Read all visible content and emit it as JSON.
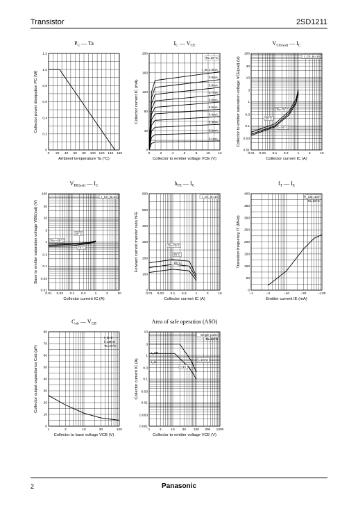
{
  "header": {
    "left": "Transistor",
    "right": "2SD1211"
  },
  "footer": {
    "page": "2",
    "brand": "Panasonic"
  },
  "chart_data": [
    {
      "id": "pc",
      "type": "line",
      "title": "P_C — Ta",
      "xlabel": "Ambient temperature Ta (°C)",
      "ylabel": "Collector power dissipation P_C (W)",
      "xlim": [
        0,
        160
      ],
      "ylim": [
        0,
        1.2
      ],
      "xticks": [
        "0",
        "20",
        "40",
        "60",
        "80",
        "100",
        "120",
        "140",
        "160"
      ],
      "yticks": [
        "0",
        "0.2",
        "0.4",
        "0.6",
        "0.8",
        "1.0",
        "1.2"
      ],
      "grid": true,
      "series": [
        {
          "x": [
            0,
            25,
            150
          ],
          "y": [
            1.0,
            1.0,
            0
          ]
        }
      ]
    },
    {
      "id": "icvce",
      "type": "line",
      "title": "I_C — V_CE",
      "xlabel": "Collector to emitter voltage V_CE (V)",
      "ylabel": "Collector current I_C (mA)",
      "xlim": [
        0,
        12
      ],
      "ylim": [
        0,
        200
      ],
      "xticks": [
        "0",
        "2",
        "4",
        "6",
        "8",
        "10",
        "12"
      ],
      "yticks": [
        "0",
        "40",
        "80",
        "120",
        "160",
        "200"
      ],
      "grid": true,
      "annotations": [
        "Ta=25°C",
        "I_B=1.0mA",
        "0.9mA",
        "0.8mA",
        "0.7mA",
        "0.6mA",
        "0.5mA",
        "0.4mA",
        "0.3mA",
        "0.2mA",
        "0.1mA"
      ],
      "series": [
        {
          "name": "1.0mA",
          "level": 150
        },
        {
          "name": "0.9mA",
          "level": 135
        },
        {
          "name": "0.8mA",
          "level": 120
        },
        {
          "name": "0.7mA",
          "level": 106
        },
        {
          "name": "0.6mA",
          "level": 92
        },
        {
          "name": "0.5mA",
          "level": 78
        },
        {
          "name": "0.4mA",
          "level": 64
        },
        {
          "name": "0.3mA",
          "level": 49
        },
        {
          "name": "0.2mA",
          "level": 33
        },
        {
          "name": "0.1mA",
          "level": 17
        }
      ]
    },
    {
      "id": "vcesat",
      "type": "line",
      "title": "V_CE(sat) — I_C",
      "xlabel": "Collector current I_C (A)",
      "ylabel": "Collector to emitter saturation voltage V_CE(sat) (V)",
      "xscale": "log",
      "yscale": "log",
      "xlim": [
        0.01,
        10
      ],
      "ylim": [
        0.01,
        100
      ],
      "xticks": [
        "0.01",
        "0.03",
        "0.1",
        "0.3",
        "1",
        "3",
        "10"
      ],
      "yticks": [
        "0.01",
        "0.03",
        "0.1",
        "0.3",
        "1",
        "3",
        "10",
        "30",
        "100"
      ],
      "grid": true,
      "annotations": [
        "I_C/I_B=10",
        "Ta=75°C",
        "25°C",
        "−25°C"
      ],
      "series": [
        {
          "name": "Ta=75°C",
          "x": [
            0.01,
            0.1,
            0.4,
            0.8,
            1.0
          ],
          "y": [
            0.055,
            0.12,
            0.4,
            1.3,
            3
          ]
        },
        {
          "name": "25°C",
          "x": [
            0.01,
            0.1,
            0.4,
            0.8,
            1.0
          ],
          "y": [
            0.045,
            0.1,
            0.33,
            1.0,
            2.6
          ]
        },
        {
          "name": "−25°C",
          "x": [
            0.01,
            0.1,
            0.4,
            0.8,
            1.0
          ],
          "y": [
            0.04,
            0.09,
            0.28,
            0.85,
            2.2
          ]
        }
      ]
    },
    {
      "id": "vbesat",
      "type": "line",
      "title": "V_BE(sat) — I_C",
      "xlabel": "Collector current I_C (A)",
      "ylabel": "Base to emitter saturation voltage V_BE(sat) (V)",
      "xscale": "log",
      "yscale": "log",
      "xlim": [
        0.01,
        10
      ],
      "ylim": [
        0.01,
        100
      ],
      "xticks": [
        "0.01",
        "0.03",
        "0.1",
        "0.3",
        "1",
        "3",
        "10"
      ],
      "yticks": [
        "0.01",
        "0.03",
        "0.1",
        "0.3",
        "1",
        "3",
        "10",
        "30",
        "100"
      ],
      "grid": true,
      "annotations": [
        "I_C/I_B=10",
        "25°C",
        "Ta=−25°C",
        "75°C"
      ],
      "series": [
        {
          "name": "Ta=−25°C",
          "x": [
            0.01,
            0.1,
            0.5,
            1.0
          ],
          "y": [
            0.82,
            0.86,
            0.95,
            1.1
          ]
        },
        {
          "name": "25°C",
          "x": [
            0.01,
            0.1,
            0.5,
            1.0
          ],
          "y": [
            0.72,
            0.78,
            0.9,
            1.05
          ]
        },
        {
          "name": "75°C",
          "x": [
            0.01,
            0.1,
            0.5,
            1.0
          ],
          "y": [
            0.62,
            0.7,
            0.85,
            1.0
          ]
        }
      ]
    },
    {
      "id": "hfe",
      "type": "line",
      "title": "h_FE — I_C",
      "xlabel": "Collector current I_C (A)",
      "ylabel": "Forward current transfer ratio h_FE",
      "xscale": "log",
      "xlim": [
        0.01,
        10
      ],
      "ylim": [
        0,
        600
      ],
      "xticks": [
        "0.01",
        "0.03",
        "0.1",
        "0.3",
        "1",
        "3",
        "10"
      ],
      "yticks": [
        "0",
        "100",
        "200",
        "300",
        "400",
        "500",
        "600"
      ],
      "grid": true,
      "annotations": [
        "I_C/I_B=10",
        "Ta=75°C",
        "25°C",
        "−25°C"
      ],
      "series": [
        {
          "name": "Ta=75°C",
          "x": [
            0.01,
            0.1,
            0.5,
            1.0
          ],
          "y": [
            170,
            190,
            180,
            90
          ]
        },
        {
          "name": "25°C",
          "x": [
            0.01,
            0.1,
            0.5,
            1.0
          ],
          "y": [
            140,
            160,
            150,
            75
          ]
        },
        {
          "name": "−25°C",
          "x": [
            0.01,
            0.1,
            0.5,
            1.0
          ],
          "y": [
            110,
            130,
            120,
            60
          ]
        }
      ]
    },
    {
      "id": "ft",
      "type": "line",
      "title": "f_T — I_E",
      "xlabel": "Emitter current I_E (mA)",
      "ylabel": "Transition frequency f_T (MHz)",
      "xscale": "log",
      "xlim": [
        -1,
        -100
      ],
      "ylim": [
        0,
        400
      ],
      "xticks": [
        "−1",
        "−3",
        "−10",
        "−30",
        "−100"
      ],
      "yticks": [
        "0",
        "50",
        "100",
        "150",
        "200",
        "250",
        "300",
        "350",
        "400"
      ],
      "grid": true,
      "annotations": [
        "V_CB=10V",
        "Ta=25°C"
      ],
      "series": [
        {
          "x": [
            -3,
            -10,
            -30,
            -60,
            -100
          ],
          "y": [
            20,
            80,
            170,
            215,
            230
          ]
        }
      ]
    },
    {
      "id": "cob",
      "type": "line",
      "title": "C_ob — V_CB",
      "xlabel": "Collector to base voltage V_CB (V)",
      "ylabel": "Collector output capacitance C_ob (pF)",
      "xscale": "log",
      "xlim": [
        1,
        100
      ],
      "ylim": [
        0,
        80
      ],
      "xticks": [
        "1",
        "3",
        "10",
        "30",
        "100"
      ],
      "yticks": [
        "0",
        "10",
        "20",
        "30",
        "40",
        "50",
        "60",
        "70",
        "80"
      ],
      "grid": true,
      "annotations": [
        "I_E=0",
        "f=1MHz",
        "Ta=25°C"
      ],
      "series": [
        {
          "x": [
            1,
            3,
            10,
            30,
            100
          ],
          "y": [
            26,
            18,
            11,
            7,
            5
          ]
        }
      ]
    },
    {
      "id": "aso",
      "type": "line",
      "title": "Area of safe operation (ASO)",
      "xlabel": "Collector to emitter voltage V_CE (V)",
      "ylabel": "Collector current I_C (A)",
      "xscale": "log",
      "yscale": "log",
      "xlim": [
        1,
        1000
      ],
      "ylim": [
        0.001,
        10
      ],
      "xticks": [
        "1",
        "3",
        "10",
        "30",
        "100",
        "300",
        "1000"
      ],
      "yticks": [
        "0.001",
        "0.003",
        "0.01",
        "0.03",
        "0.1",
        "0.3",
        "1",
        "3",
        "10"
      ],
      "grid": true,
      "annotations": [
        "Single pulse",
        "Ta=25°C",
        "t=10ms",
        "t=1s",
        "I_CP",
        "I_C"
      ],
      "series": [
        {
          "name": "t=10ms",
          "x": [
            1,
            20,
            60,
            100
          ],
          "y": [
            3,
            3,
            0.6,
            0.2
          ]
        },
        {
          "name": "t=1s",
          "x": [
            1,
            12,
            50,
            100
          ],
          "y": [
            1.2,
            1.2,
            0.3,
            0.1
          ]
        }
      ]
    }
  ]
}
